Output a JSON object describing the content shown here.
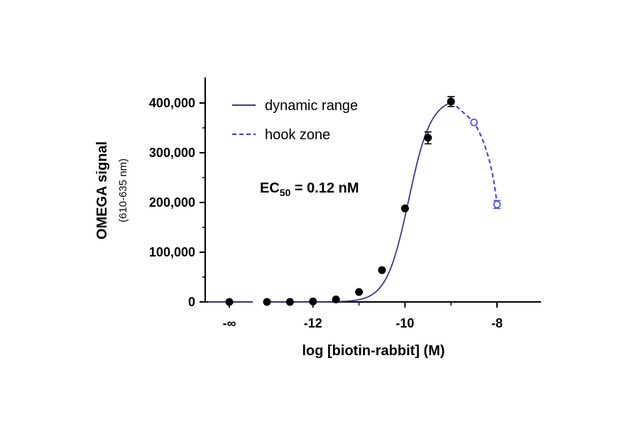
{
  "chart_data": {
    "type": "scatter",
    "xlabel": "log [biotin-rabbit] (M)",
    "ylabel": "OMEGA signal",
    "ylabel_sub": "(610-635 nm)",
    "xlim": [
      -13.6,
      -7.1
    ],
    "ylim": [
      0,
      440000
    ],
    "x_ticks": [
      {
        "value": -12,
        "label": "-12"
      },
      {
        "value": -10,
        "label": "-10"
      },
      {
        "value": -8,
        "label": "-8"
      }
    ],
    "x_neg_inf_label": "-∞",
    "y_ticks": [
      {
        "value": 0,
        "label": "0"
      },
      {
        "value": 100000,
        "label": "100,000"
      },
      {
        "value": 200000,
        "label": "200,000"
      },
      {
        "value": 300000,
        "label": "300,000"
      },
      {
        "value": 400000,
        "label": "400,000"
      }
    ],
    "annotation": {
      "prefix": "EC",
      "subscript": "50",
      "suffix": " = 0.12 nM"
    },
    "series": [
      {
        "name": "dynamic range",
        "style": "solid",
        "color": "#3a3a8c",
        "marker_color": "#000000",
        "points": [
          {
            "x": "-inf",
            "y": 0
          },
          {
            "x": -13,
            "y": 0
          },
          {
            "x": -12.5,
            "y": 0
          },
          {
            "x": -12,
            "y": 1000
          },
          {
            "x": -11.5,
            "y": 5000
          },
          {
            "x": -11,
            "y": 20000
          },
          {
            "x": -10.5,
            "y": 64000
          },
          {
            "x": -10,
            "y": 188000
          },
          {
            "x": -9.5,
            "y": 330000,
            "err": 12000
          },
          {
            "x": -9,
            "y": 403000,
            "err": 10000
          }
        ]
      },
      {
        "name": "hook zone",
        "style": "dashed",
        "color": "#3a3adc",
        "marker_color": "#5a5ae6",
        "points": [
          {
            "x": -9,
            "y": 403000
          },
          {
            "x": -8.5,
            "y": 361000
          },
          {
            "x": -8,
            "y": 196000,
            "err": 8000
          }
        ]
      }
    ],
    "grid": false,
    "legend": "top-left"
  }
}
